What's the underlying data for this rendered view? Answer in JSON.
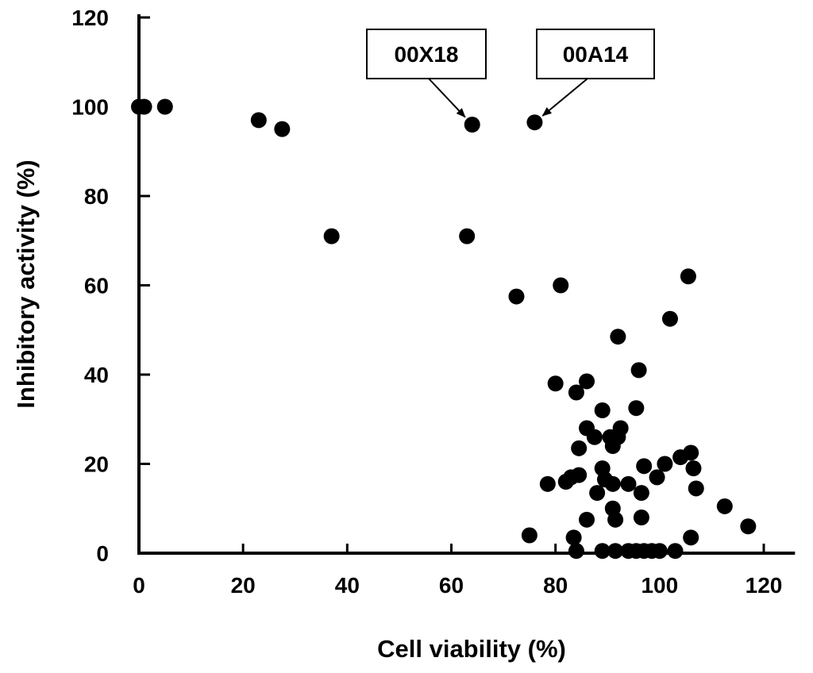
{
  "chart_data": {
    "type": "scatter",
    "title": "",
    "xlabel": "Cell viability (%)",
    "ylabel": "Inhibitory activity (%)",
    "xlim": [
      0,
      126
    ],
    "ylim": [
      0,
      120
    ],
    "xticks": [
      0,
      20,
      40,
      60,
      80,
      100,
      120
    ],
    "yticks": [
      0,
      20,
      40,
      60,
      80,
      100,
      120
    ],
    "grid": false,
    "marker_color": "#000000",
    "points": [
      {
        "x": 0,
        "y": 100
      },
      {
        "x": 1,
        "y": 100
      },
      {
        "x": 5,
        "y": 100
      },
      {
        "x": 23,
        "y": 97
      },
      {
        "x": 27.5,
        "y": 95
      },
      {
        "x": 37,
        "y": 71
      },
      {
        "x": 63,
        "y": 71
      },
      {
        "x": 64,
        "y": 96
      },
      {
        "x": 76,
        "y": 96.5
      },
      {
        "x": 72.5,
        "y": 57.5
      },
      {
        "x": 81,
        "y": 60
      },
      {
        "x": 105.5,
        "y": 62
      },
      {
        "x": 102,
        "y": 52.5
      },
      {
        "x": 92,
        "y": 48.5
      },
      {
        "x": 96,
        "y": 41
      },
      {
        "x": 80,
        "y": 38
      },
      {
        "x": 86,
        "y": 38.5
      },
      {
        "x": 84,
        "y": 36
      },
      {
        "x": 89,
        "y": 32
      },
      {
        "x": 95.5,
        "y": 32.5
      },
      {
        "x": 86,
        "y": 28
      },
      {
        "x": 87.5,
        "y": 26
      },
      {
        "x": 90.5,
        "y": 26
      },
      {
        "x": 92.5,
        "y": 28
      },
      {
        "x": 92,
        "y": 26
      },
      {
        "x": 91,
        "y": 24
      },
      {
        "x": 84.5,
        "y": 23.5
      },
      {
        "x": 106,
        "y": 22.5
      },
      {
        "x": 104,
        "y": 21.5
      },
      {
        "x": 97,
        "y": 19.5
      },
      {
        "x": 101,
        "y": 20
      },
      {
        "x": 106.5,
        "y": 19
      },
      {
        "x": 89,
        "y": 19
      },
      {
        "x": 99.5,
        "y": 17
      },
      {
        "x": 83,
        "y": 17
      },
      {
        "x": 84.5,
        "y": 17.5
      },
      {
        "x": 82,
        "y": 16
      },
      {
        "x": 78.5,
        "y": 15.5
      },
      {
        "x": 89.5,
        "y": 16.5
      },
      {
        "x": 91,
        "y": 15.5
      },
      {
        "x": 94,
        "y": 15.5
      },
      {
        "x": 107,
        "y": 14.5
      },
      {
        "x": 88,
        "y": 13.5
      },
      {
        "x": 96.5,
        "y": 13.5
      },
      {
        "x": 112.5,
        "y": 10.5
      },
      {
        "x": 91,
        "y": 10
      },
      {
        "x": 91.5,
        "y": 7.5
      },
      {
        "x": 86,
        "y": 7.5
      },
      {
        "x": 96.5,
        "y": 8
      },
      {
        "x": 117,
        "y": 6
      },
      {
        "x": 75,
        "y": 4
      },
      {
        "x": 83.5,
        "y": 3.5
      },
      {
        "x": 106,
        "y": 3.5
      },
      {
        "x": 84,
        "y": 0.5
      },
      {
        "x": 89,
        "y": 0.5
      },
      {
        "x": 91.5,
        "y": 0.5
      },
      {
        "x": 94,
        "y": 0.5
      },
      {
        "x": 95.5,
        "y": 0.5
      },
      {
        "x": 97,
        "y": 0.5
      },
      {
        "x": 98.5,
        "y": 0.5
      },
      {
        "x": 100,
        "y": 0.5
      },
      {
        "x": 103,
        "y": 0.5
      }
    ],
    "annotations": [
      {
        "text": "00X18",
        "x": 64,
        "y": 96
      },
      {
        "text": "00A14",
        "x": 76,
        "y": 96.5
      }
    ]
  }
}
